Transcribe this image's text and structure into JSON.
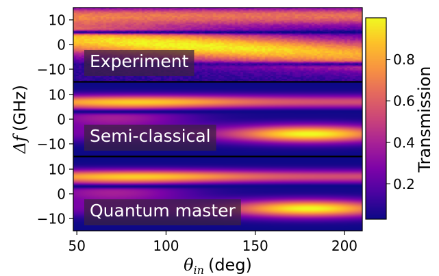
{
  "chart_data": {
    "type": "heatmap",
    "x_axis": {
      "label_symbol": "θ",
      "label_subscript": "in",
      "label_unit": "(deg)",
      "range": [
        48,
        210
      ],
      "ticks": [
        50,
        100,
        150,
        200
      ],
      "tick_labels": [
        "50",
        "100",
        "150",
        "200"
      ]
    },
    "y_axis": {
      "label_symbol": "Δf",
      "label_unit": "(GHz)",
      "range": [
        -15,
        15
      ],
      "ticks": [
        10,
        0,
        -10
      ],
      "tick_labels": [
        "10",
        "0",
        "−10"
      ]
    },
    "colorbar": {
      "label": "Transmission",
      "colormap": "plasma",
      "range": [
        0.03,
        1.0
      ],
      "ticks": [
        0.2,
        0.4,
        0.6,
        0.8
      ],
      "tick_labels": [
        "0.2",
        "0.4",
        "0.6",
        "0.8"
      ]
    },
    "panels": [
      {
        "label": "Experiment",
        "noisy": true,
        "dark_line_centers_ghz": [
          5.0,
          -8.0
        ],
        "bright_band_at_50deg_ghz": 2,
        "bright_band_at_210deg_ghz": -3
      },
      {
        "label": "Semi-classical",
        "noisy": false,
        "dark_line_centers_ghz": [
          3.0
        ],
        "upper_band_center_ghz": 7,
        "lower_band_center_ghz": -6,
        "lower_band_peak_deg": 180
      },
      {
        "label": "Quantum master",
        "noisy": false,
        "dark_line_centers_ghz": [
          3.0
        ],
        "upper_band_center_ghz": 7,
        "lower_band_center_ghz": -6,
        "lower_band_peak_deg": 180
      }
    ]
  }
}
